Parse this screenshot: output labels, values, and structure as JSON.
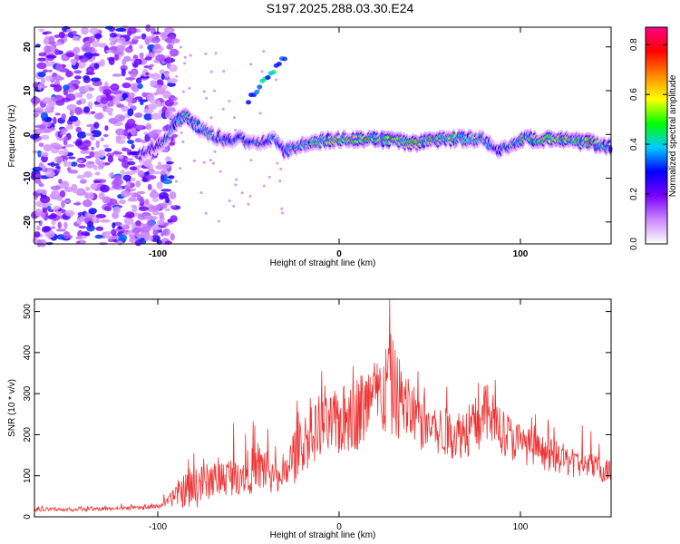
{
  "title": "S197.2025.288.03.30.E24",
  "chart_data": [
    {
      "type": "heatmap",
      "name": "spectrogram",
      "xlabel": "Height of straight line (km)",
      "ylabel": "Frequency (Hz)",
      "xlim": [
        -168,
        150
      ],
      "ylim": [
        -25,
        24.5
      ],
      "xticks": [
        -100,
        0,
        100
      ],
      "yticks": [
        -20,
        -10,
        0,
        10,
        20
      ],
      "colorbar": {
        "label": "Normalized spectral amplitude",
        "range": [
          0.0,
          0.87
        ],
        "ticks": [
          0.0,
          0.2,
          0.4,
          0.6,
          0.8
        ],
        "colors": [
          "#ffffff",
          "#cc88ff",
          "#7a00ff",
          "#0000ff",
          "#00ccff",
          "#00ff00",
          "#ffff00",
          "#ff8800",
          "#ff0000",
          "#ff0088"
        ]
      },
      "ridge": {
        "description": "dominant frequency ridge",
        "x": [
          -110,
          -95,
          -90,
          -85,
          -75,
          -65,
          -55,
          -45,
          -35,
          -30,
          -20,
          0,
          20,
          40,
          60,
          80,
          88,
          100,
          120,
          140,
          150
        ],
        "freq": [
          -5,
          -1,
          3,
          4,
          1,
          -1,
          -1,
          -2,
          -1,
          -4,
          -2,
          -1,
          -1,
          -2,
          -1,
          -1,
          -4,
          -1,
          -1,
          -2,
          -3
        ],
        "amplitude": [
          0.3,
          0.4,
          0.5,
          0.55,
          0.45,
          0.45,
          0.45,
          0.4,
          0.4,
          0.45,
          0.55,
          0.6,
          0.7,
          0.7,
          0.6,
          0.5,
          0.35,
          0.6,
          0.7,
          0.65,
          0.5
        ]
      },
      "noise_region": {
        "x_range": [
          -168,
          -90
        ],
        "max_amplitude": 0.3
      },
      "streak": {
        "x": [
          -50,
          -30
        ],
        "freq": [
          8,
          18
        ]
      }
    },
    {
      "type": "line",
      "name": "snr",
      "xlabel": "Height of straight line (km)",
      "ylabel": "SNR (10 * v/v)",
      "xlim": [
        -168,
        150
      ],
      "ylim": [
        0,
        530
      ],
      "xticks": [
        -100,
        0,
        100
      ],
      "yticks": [
        0,
        100,
        200,
        300,
        400,
        500
      ],
      "color": "#ee3333",
      "series": [
        {
          "name": "SNR",
          "x": [
            -168,
            -140,
            -110,
            -100,
            -95,
            -88,
            -80,
            -70,
            -60,
            -50,
            -40,
            -32,
            -25,
            -15,
            -5,
            5,
            15,
            25,
            28,
            35,
            45,
            55,
            65,
            75,
            80,
            85,
            95,
            110,
            130,
            150
          ],
          "y": [
            18,
            18,
            22,
            25,
            35,
            60,
            70,
            90,
            100,
            110,
            120,
            80,
            150,
            200,
            220,
            240,
            270,
            300,
            320,
            280,
            230,
            210,
            200,
            220,
            250,
            240,
            190,
            160,
            130,
            110
          ],
          "spike_amplitude": [
            8,
            8,
            8,
            10,
            15,
            60,
            90,
            70,
            80,
            90,
            110,
            40,
            120,
            120,
            130,
            150,
            160,
            180,
            220,
            150,
            120,
            100,
            100,
            120,
            130,
            120,
            90,
            70,
            60,
            50
          ]
        }
      ]
    }
  ]
}
